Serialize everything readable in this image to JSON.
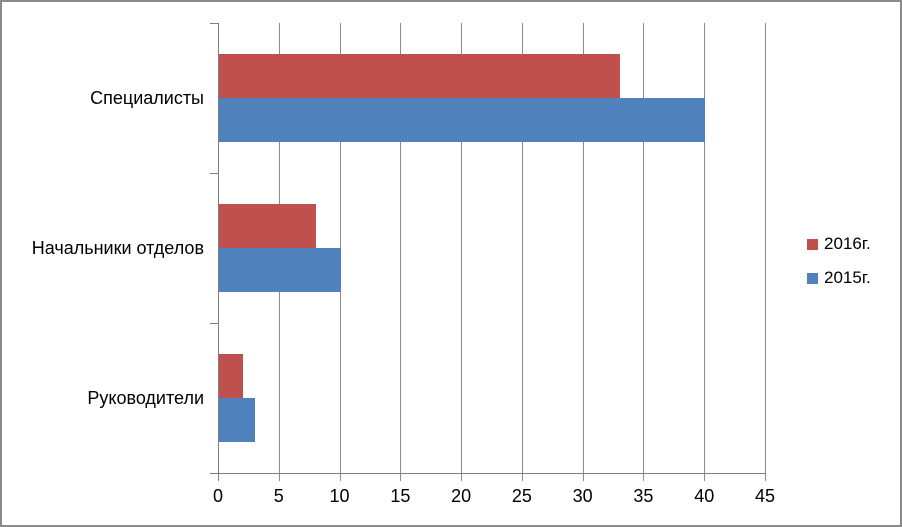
{
  "chart_data": {
    "type": "bar",
    "orientation": "horizontal",
    "title": "",
    "xlabel": "",
    "ylabel": "",
    "categories": [
      "Специалисты",
      "Начальники отделов",
      "Руководители"
    ],
    "series": [
      {
        "name": "2016г.",
        "color": "#C0504D",
        "values": [
          33,
          8,
          2
        ]
      },
      {
        "name": "2015г.",
        "color": "#4F81BD",
        "values": [
          40,
          10,
          3
        ]
      }
    ],
    "x_axis": {
      "min": 0,
      "max": 45,
      "step": 5,
      "tick_labels": [
        "0",
        "5",
        "10",
        "15",
        "20",
        "25",
        "30",
        "35",
        "40",
        "45"
      ]
    },
    "grid": true,
    "legend_position": "right"
  },
  "style": {
    "gridline_color": "#8B8B8B",
    "axis_color": "#7F7F7F",
    "text_color": "#000000",
    "border_color": "#8A8A8A",
    "background": "#FFFFFF"
  }
}
